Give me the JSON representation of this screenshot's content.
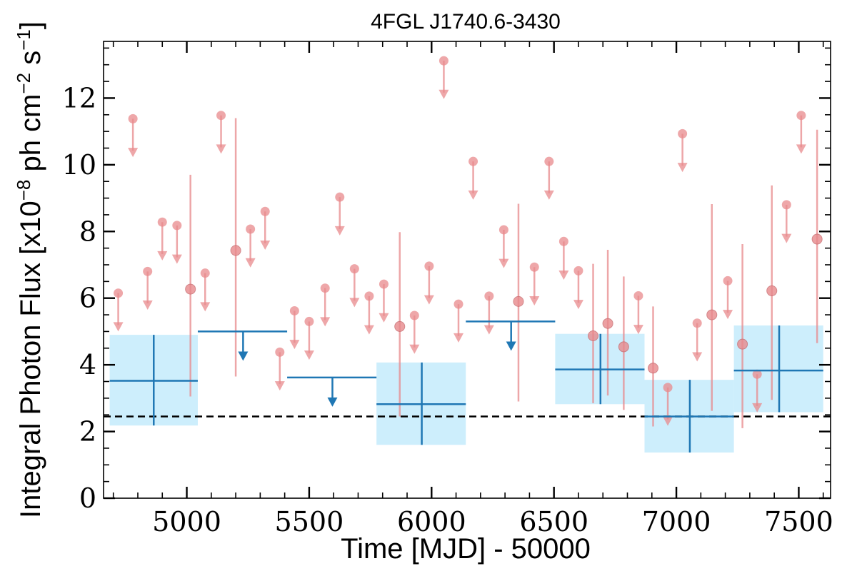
{
  "chart_data": {
    "type": "scatter",
    "title": "4FGL J1740.6-3430",
    "xlabel": "Time [MJD] - 50000",
    "ylabel": "Integral Photon Flux [x10$^{-8}$ ph cm$^{-2}$ s$^{-1}$]",
    "ylabel_parts": {
      "base": "Integral Photon Flux [x10",
      "exp1": "−8",
      "mid1": " ph cm",
      "exp2": "−2",
      "mid2": " s",
      "exp3": "−1",
      "end": "]"
    },
    "xlim": [
      4660,
      7630
    ],
    "ylim": [
      0,
      13.7
    ],
    "x_ticks": [
      5000,
      5500,
      6000,
      6500,
      7000,
      7500
    ],
    "x_tick_labels": [
      "5000",
      "5500",
      "6000",
      "6500",
      "7000",
      "7500"
    ],
    "y_ticks": [
      0,
      2,
      4,
      6,
      8,
      10,
      12
    ],
    "y_tick_labels": [
      "0",
      "2",
      "4",
      "6",
      "8",
      "10",
      "12"
    ],
    "grid": false,
    "colors": {
      "short_bins": "#e8898c",
      "long_bins": "#1f77b4",
      "error_box": "#cdeefc",
      "reference_line": "#000000"
    },
    "reference_line": {
      "y": 2.45,
      "style": "dashed"
    },
    "series": [
      {
        "kind": "short_bins",
        "points": [
          {
            "x": 4720,
            "y": 6.15,
            "ul": true
          },
          {
            "x": 4780,
            "y": 11.38,
            "ul": true
          },
          {
            "x": 4840,
            "y": 6.8,
            "ul": true
          },
          {
            "x": 4900,
            "y": 8.28,
            "ul": true
          },
          {
            "x": 4960,
            "y": 8.18,
            "ul": true
          },
          {
            "x": 5015,
            "y": 6.27,
            "ul": false,
            "ylo": 3.05,
            "yhi": 9.7
          },
          {
            "x": 5075,
            "y": 6.75,
            "ul": true
          },
          {
            "x": 5140,
            "y": 11.48,
            "ul": true
          },
          {
            "x": 5200,
            "y": 7.43,
            "ul": false,
            "ylo": 3.65,
            "yhi": 11.4
          },
          {
            "x": 5260,
            "y": 8.07,
            "ul": true
          },
          {
            "x": 5320,
            "y": 8.6,
            "ul": true
          },
          {
            "x": 5380,
            "y": 4.38,
            "ul": true
          },
          {
            "x": 5440,
            "y": 5.62,
            "ul": true
          },
          {
            "x": 5500,
            "y": 5.3,
            "ul": true
          },
          {
            "x": 5565,
            "y": 6.3,
            "ul": true
          },
          {
            "x": 5625,
            "y": 9.03,
            "ul": true
          },
          {
            "x": 5685,
            "y": 6.88,
            "ul": true
          },
          {
            "x": 5745,
            "y": 6.06,
            "ul": true
          },
          {
            "x": 5805,
            "y": 6.42,
            "ul": true
          },
          {
            "x": 5870,
            "y": 5.15,
            "ul": false,
            "ylo": 2.45,
            "yhi": 7.98
          },
          {
            "x": 5930,
            "y": 5.48,
            "ul": true
          },
          {
            "x": 5990,
            "y": 6.96,
            "ul": true
          },
          {
            "x": 6050,
            "y": 13.12,
            "ul": true
          },
          {
            "x": 6110,
            "y": 5.82,
            "ul": true
          },
          {
            "x": 6170,
            "y": 10.1,
            "ul": true
          },
          {
            "x": 6235,
            "y": 6.06,
            "ul": true
          },
          {
            "x": 6295,
            "y": 8.05,
            "ul": true
          },
          {
            "x": 6355,
            "y": 5.9,
            "ul": false,
            "ylo": 2.9,
            "yhi": 8.83
          },
          {
            "x": 6420,
            "y": 6.93,
            "ul": true
          },
          {
            "x": 6480,
            "y": 10.1,
            "ul": true
          },
          {
            "x": 6540,
            "y": 7.7,
            "ul": true
          },
          {
            "x": 6600,
            "y": 6.82,
            "ul": true
          },
          {
            "x": 6660,
            "y": 4.87,
            "ul": false,
            "ylo": 2.85,
            "yhi": 7.03
          },
          {
            "x": 6720,
            "y": 5.24,
            "ul": false,
            "ylo": 3.08,
            "yhi": 7.45
          },
          {
            "x": 6785,
            "y": 4.54,
            "ul": false,
            "ylo": 2.65,
            "yhi": 6.65
          },
          {
            "x": 6845,
            "y": 6.07,
            "ul": true
          },
          {
            "x": 6905,
            "y": 3.9,
            "ul": false,
            "ylo": 2.15,
            "yhi": 5.75
          },
          {
            "x": 6965,
            "y": 3.32,
            "ul": true
          },
          {
            "x": 7025,
            "y": 10.93,
            "ul": true
          },
          {
            "x": 7085,
            "y": 5.25,
            "ul": true
          },
          {
            "x": 7145,
            "y": 5.5,
            "ul": false,
            "ylo": 2.62,
            "yhi": 8.82
          },
          {
            "x": 7210,
            "y": 6.52,
            "ul": true
          },
          {
            "x": 7270,
            "y": 4.62,
            "ul": false,
            "ylo": 2.1,
            "yhi": 7.62
          },
          {
            "x": 7330,
            "y": 3.72,
            "ul": true
          },
          {
            "x": 7390,
            "y": 6.22,
            "ul": false,
            "ylo": 2.95,
            "yhi": 9.38
          },
          {
            "x": 7450,
            "y": 8.8,
            "ul": true
          },
          {
            "x": 7510,
            "y": 11.48,
            "ul": true
          },
          {
            "x": 7575,
            "y": 7.77,
            "ul": false,
            "ylo": 4.65,
            "yhi": 11.05
          }
        ]
      },
      {
        "kind": "long_bins",
        "points": [
          {
            "x": 4865,
            "x0": 4685,
            "x1": 5045,
            "y": 3.52,
            "ul": false,
            "ylo": 2.18,
            "yhi": 4.9
          },
          {
            "x": 5230,
            "x0": 5045,
            "x1": 5410,
            "y": 5.0,
            "ul": true
          },
          {
            "x": 5595,
            "x0": 5410,
            "x1": 5775,
            "y": 3.62,
            "ul": true
          },
          {
            "x": 5960,
            "x0": 5775,
            "x1": 6140,
            "y": 2.82,
            "ul": false,
            "ylo": 1.6,
            "yhi": 4.07
          },
          {
            "x": 6325,
            "x0": 6140,
            "x1": 6505,
            "y": 5.3,
            "ul": true
          },
          {
            "x": 6690,
            "x0": 6505,
            "x1": 6870,
            "y": 3.86,
            "ul": false,
            "ylo": 2.82,
            "yhi": 4.93
          },
          {
            "x": 7055,
            "x0": 6870,
            "x1": 7235,
            "y": 2.45,
            "ul": false,
            "ylo": 1.37,
            "yhi": 3.55
          },
          {
            "x": 7420,
            "x0": 7235,
            "x1": 7600,
            "y": 3.83,
            "ul": false,
            "ylo": 2.58,
            "yhi": 5.18
          }
        ]
      }
    ]
  }
}
